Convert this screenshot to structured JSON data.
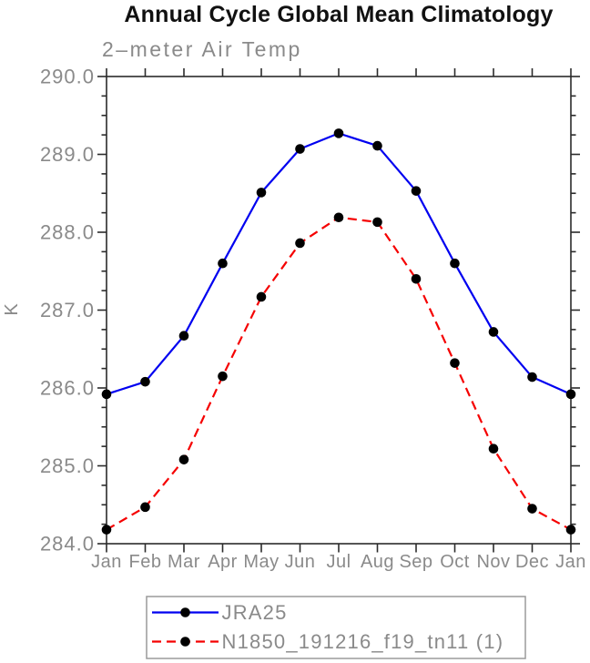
{
  "chart_data": {
    "type": "line",
    "title": "Annual Cycle Global Mean Climatology",
    "subtitle": "2–meter Air Temp",
    "ylabel": "K",
    "xlabel": "",
    "ylim": [
      284.0,
      290.0
    ],
    "ytick_interval": 1.0,
    "ytick_minor_interval": 0.25,
    "ytick_labels": [
      "290.0",
      "289.0",
      "288.0",
      "287.0",
      "286.0",
      "285.0",
      "284.0"
    ],
    "categories": [
      "Jan",
      "Feb",
      "Mar",
      "Apr",
      "May",
      "Jun",
      "Jul",
      "Aug",
      "Sep",
      "Oct",
      "Nov",
      "Dec",
      "Jan"
    ],
    "series": [
      {
        "name": "JRA25",
        "color": "#0000f0",
        "line_style": "solid",
        "marker": "circle",
        "marker_color": "#000000",
        "values": [
          285.92,
          286.08,
          286.67,
          287.6,
          288.51,
          289.07,
          289.27,
          289.11,
          288.53,
          287.6,
          286.72,
          286.14,
          285.92
        ]
      },
      {
        "name": "N1850_191216_f19_tn11 (1)",
        "color": "#f50000",
        "line_style": "dashed",
        "marker": "circle",
        "marker_color": "#000000",
        "values": [
          284.18,
          284.47,
          285.08,
          286.15,
          287.17,
          287.86,
          288.19,
          288.13,
          287.4,
          286.32,
          285.22,
          284.45,
          284.18
        ]
      }
    ],
    "legend_position": "bottom",
    "grid": false,
    "style": {
      "frame_color": "#2b2b2b",
      "text_color": "#8a8a8a",
      "legend_border_color": "#9a9a9a",
      "title_color": "#111111"
    }
  }
}
